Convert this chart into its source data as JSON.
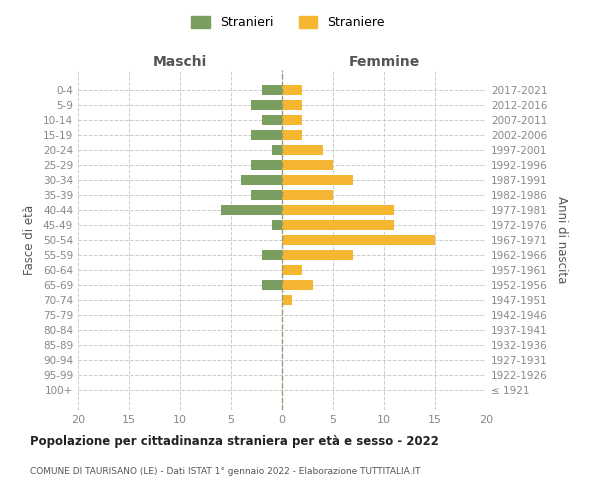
{
  "age_groups": [
    "100+",
    "95-99",
    "90-94",
    "85-89",
    "80-84",
    "75-79",
    "70-74",
    "65-69",
    "60-64",
    "55-59",
    "50-54",
    "45-49",
    "40-44",
    "35-39",
    "30-34",
    "25-29",
    "20-24",
    "15-19",
    "10-14",
    "5-9",
    "0-4"
  ],
  "birth_years": [
    "≤ 1921",
    "1922-1926",
    "1927-1931",
    "1932-1936",
    "1937-1941",
    "1942-1946",
    "1947-1951",
    "1952-1956",
    "1957-1961",
    "1962-1966",
    "1967-1971",
    "1972-1976",
    "1977-1981",
    "1982-1986",
    "1987-1991",
    "1992-1996",
    "1997-2001",
    "2002-2006",
    "2007-2011",
    "2012-2016",
    "2017-2021"
  ],
  "stranieri": [
    0,
    0,
    0,
    0,
    0,
    0,
    0,
    2,
    0,
    2,
    0,
    1,
    6,
    3,
    4,
    3,
    1,
    3,
    2,
    3,
    2
  ],
  "straniere": [
    0,
    0,
    0,
    0,
    0,
    0,
    1,
    3,
    2,
    7,
    15,
    11,
    11,
    5,
    7,
    5,
    4,
    2,
    2,
    2,
    2
  ],
  "color_stranieri": "#7a9e5f",
  "color_straniere": "#f5b731",
  "title": "Popolazione per cittadinanza straniera per età e sesso - 2022",
  "subtitle": "COMUNE DI TAURISANO (LE) - Dati ISTAT 1° gennaio 2022 - Elaborazione TUTTITALIA.IT",
  "label_maschi": "Maschi",
  "label_femmine": "Femmine",
  "ylabel_left": "Fasce di età",
  "ylabel_right": "Anni di nascita",
  "xlim": 20,
  "legend_stranieri": "Stranieri",
  "legend_straniere": "Straniere",
  "bg_color": "#ffffff",
  "grid_color": "#cccccc"
}
